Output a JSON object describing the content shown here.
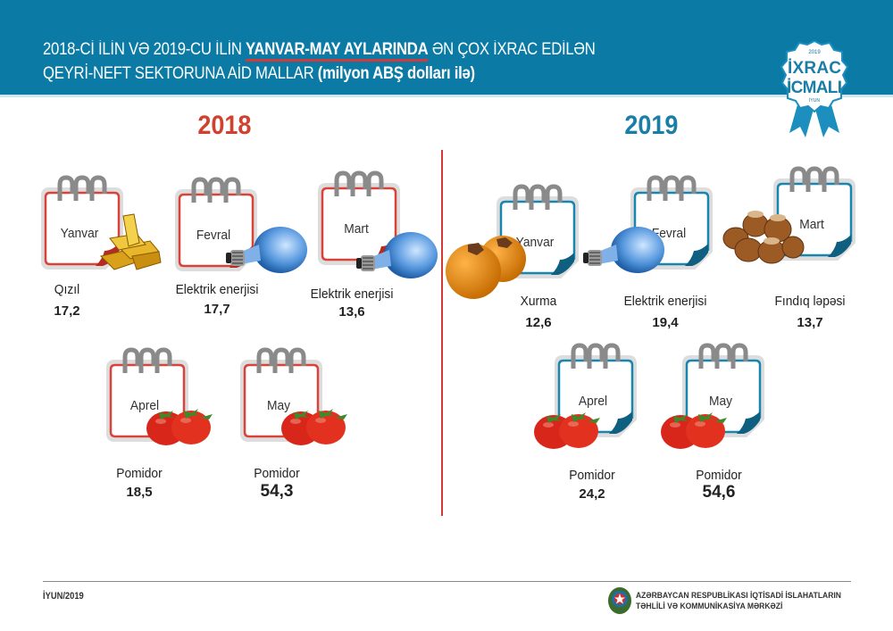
{
  "header": {
    "title_line1_a": "2018-Cİ İLİN VƏ 2019-CU İLİN ",
    "title_line1_b": "YANVAR-MAY AYLARINDA",
    "title_line1_c": " ƏN ÇOX İXRAC EDİLƏN",
    "title_line2_a": "QEYRİ-NEFT SEKTORUNA AİD MALLAR ",
    "title_line2_b": "(milyon ABŞ dolları ilə)",
    "badge": {
      "year": "2019",
      "line1": "İXRAC",
      "line2": "İCMALI",
      "month": "İYUN"
    },
    "color": "#0b7ba6"
  },
  "years": [
    {
      "label": "2018",
      "color": "#d0412f",
      "items": [
        {
          "month": "Yanvar",
          "product": "Qızıl",
          "value": "17,2",
          "icon": "gold-bars-icon"
        },
        {
          "month": "Fevral",
          "product": "Elektrik enerjisi",
          "value": "17,7",
          "icon": "light-bulb-icon"
        },
        {
          "month": "Mart",
          "product": "Elektrik enerjisi",
          "value": "13,6",
          "icon": "light-bulb-icon"
        },
        {
          "month": "Aprel",
          "product": "Pomidor",
          "value": "18,5",
          "icon": "tomato-icon"
        },
        {
          "month": "May",
          "product": "Pomidor",
          "value": "54,3",
          "icon": "tomato-icon"
        }
      ]
    },
    {
      "label": "2019",
      "color": "#1a7ea6",
      "items": [
        {
          "month": "Yanvar",
          "product": "Xurma",
          "value": "12,6",
          "icon": "persimmon-icon"
        },
        {
          "month": "Fevral",
          "product": "Elektrik enerjisi",
          "value": "19,4",
          "icon": "light-bulb-icon"
        },
        {
          "month": "Mart",
          "product": "Fındıq ləpəsi",
          "value": "13,7",
          "icon": "hazelnut-icon"
        },
        {
          "month": "Aprel",
          "product": "Pomidor",
          "value": "24,2",
          "icon": "tomato-icon"
        },
        {
          "month": "May",
          "product": "Pomidor",
          "value": "54,6",
          "icon": "tomato-icon"
        }
      ]
    }
  ],
  "footer": {
    "date": "İYUN/2019",
    "org_line1": "AZƏRBAYCAN RESPUBLİKASI İQTİSADİ İSLAHATLARIN",
    "org_line2": "TƏHLİLİ VƏ KOMMUNİKASİYA MƏRKƏZİ"
  }
}
